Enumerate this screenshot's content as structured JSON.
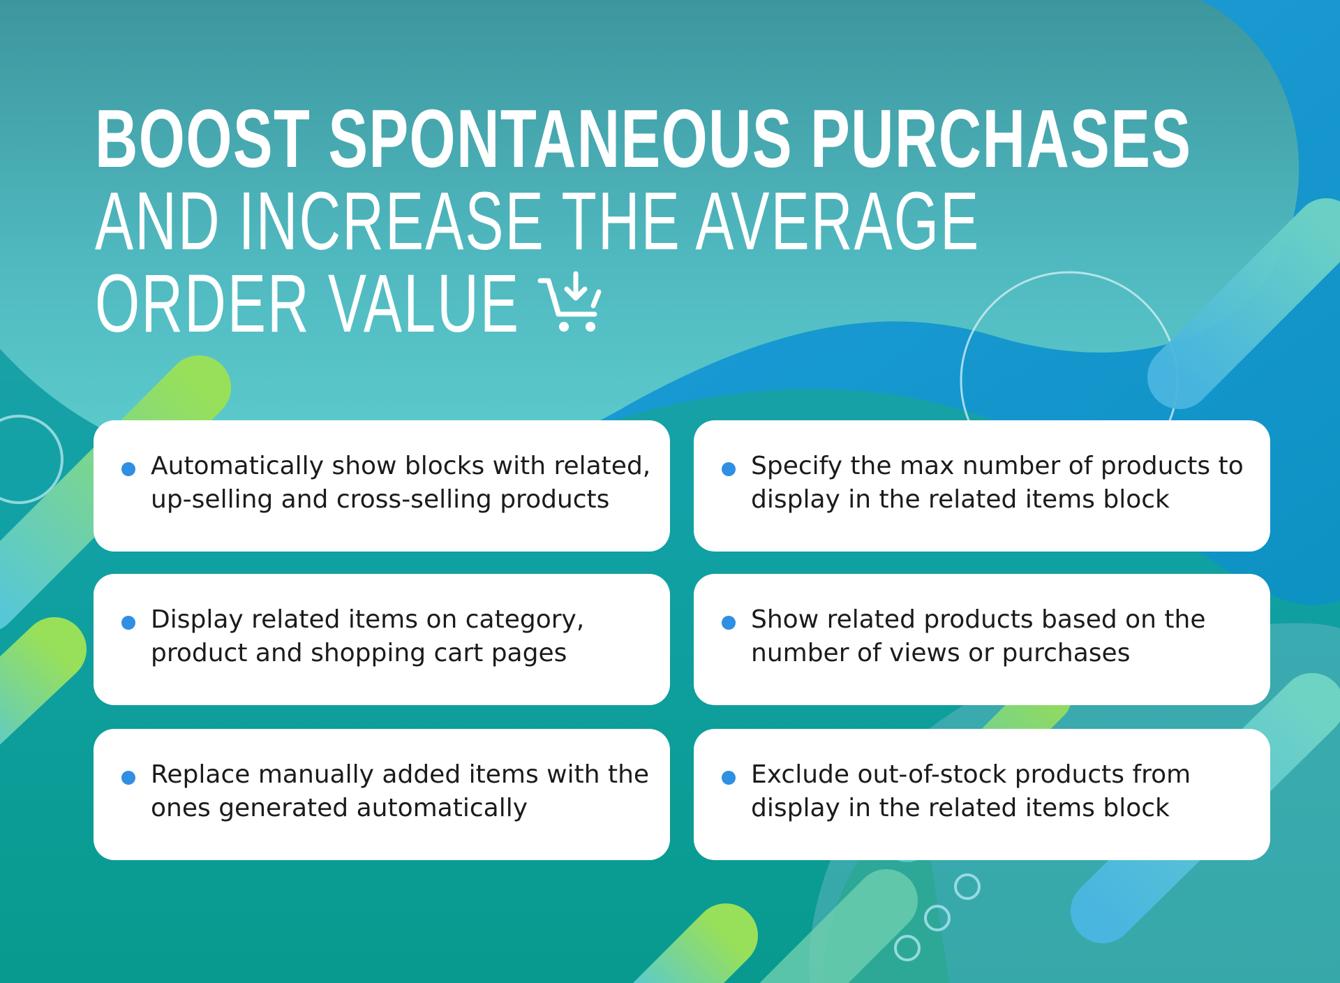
{
  "headline": {
    "line1": "BOOST SPONTANEOUS PURCHASES",
    "line2": "AND INCREASE THE AVERAGE",
    "line3": "ORDER VALUE",
    "icon": "cart-download-icon"
  },
  "features": [
    "Automatically show blocks with related, up-selling and cross-selling products",
    "Specify the max number of products to display in the related items block",
    "Display related items on category, product and shopping cart pages",
    "Show related products based on the number of views or purchases",
    "Replace manually added items with the ones generated automatically",
    "Exclude out-of-stock products from display in the related items block"
  ],
  "colors": {
    "bullet": "#2f8fe3",
    "text": "#1b1b1b",
    "card": "#ffffff",
    "bg_teal": "#14a39a",
    "bg_blue": "#1a97d8",
    "accent_green": "#8fdc5a"
  }
}
